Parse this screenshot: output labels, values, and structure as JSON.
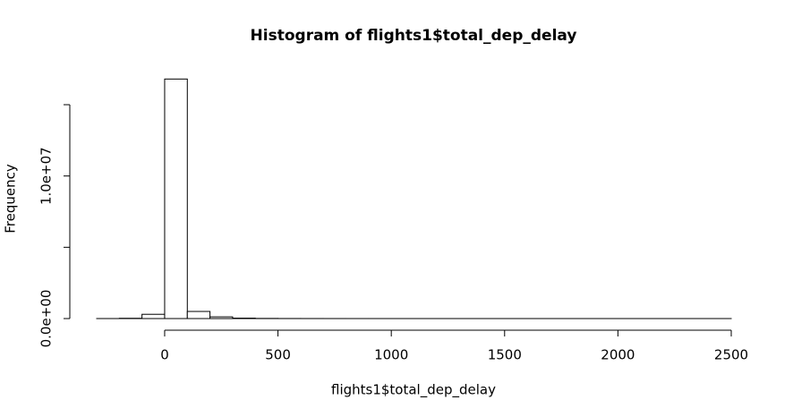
{
  "chart_data": {
    "type": "histogram",
    "title": "Histogram of flights1$total_dep_delay",
    "x_label": "flights1$total_dep_delay",
    "y_label": "Frequency",
    "bins": [
      -300,
      -200,
      -100,
      0,
      100,
      200,
      300,
      400,
      500,
      600,
      700,
      800,
      900,
      1000,
      1100,
      1200,
      1300,
      1400,
      1500,
      1600,
      1700,
      1800,
      1900,
      2000,
      2100,
      2200,
      2300,
      2400,
      2500
    ],
    "values": [
      1000,
      20000,
      300000,
      16800000,
      500000,
      120000,
      30000,
      10000,
      4000,
      2000,
      800,
      400,
      200,
      100,
      60,
      40,
      20,
      10,
      8,
      5,
      4,
      3,
      2,
      2,
      1,
      1,
      1,
      1
    ],
    "color": "#ffffff",
    "xlim": [
      -300,
      2500
    ],
    "xticks": [
      0,
      500,
      1000,
      1500,
      2000,
      2500
    ],
    "ylim": [
      0,
      15000000
    ],
    "yticks": [
      {
        "value": 0,
        "label": "0.0e+00"
      },
      {
        "value": 5000000,
        "label": null
      },
      {
        "value": 10000000,
        "label": "1.0e+07"
      },
      {
        "value": 15000000,
        "label": null
      }
    ]
  }
}
